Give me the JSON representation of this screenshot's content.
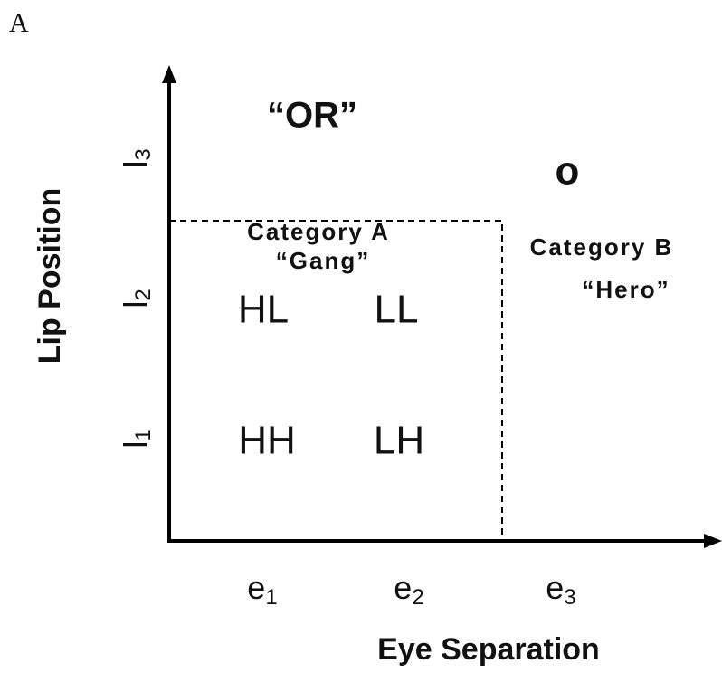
{
  "panel_label": "A",
  "annotation": "“OR”",
  "y_axis": {
    "label": "Lip Position",
    "ticks": [
      {
        "base": "l",
        "sub": "1"
      },
      {
        "base": "l",
        "sub": "2"
      },
      {
        "base": "l",
        "sub": "3"
      }
    ]
  },
  "x_axis": {
    "label": "Eye Separation",
    "ticks": [
      {
        "base": "e",
        "sub": "1"
      },
      {
        "base": "e",
        "sub": "2"
      },
      {
        "base": "e",
        "sub": "3"
      }
    ]
  },
  "category_a": {
    "name": "Category A",
    "nickname": "“Gang”"
  },
  "category_b": {
    "name": "Category B",
    "nickname": "“Hero”"
  },
  "cells": [
    "HL",
    "LL",
    "HH",
    "LH"
  ],
  "marker": "o"
}
